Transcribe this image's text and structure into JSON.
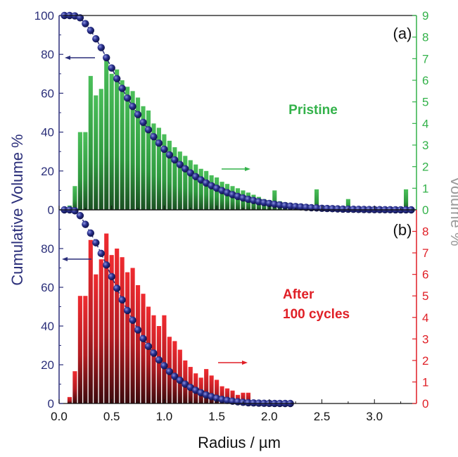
{
  "figure": {
    "xlabel": "Radius / µm",
    "left_axis_label": "Cumulative Volume %",
    "right_axis_label": "Volume %",
    "colors": {
      "left_axis": "#2b2f7a",
      "top_panel": "#33b24a",
      "bottom_panel": "#e01f26",
      "right_label": "#9a9a9a",
      "marker": "#1e2466"
    }
  },
  "chart_data": [
    {
      "panel": "(a)",
      "type": "bar+line",
      "annotation": "Pristine",
      "xlim": [
        0,
        3.4
      ],
      "ylim_left": [
        0,
        100
      ],
      "ylim_right": [
        0,
        9
      ],
      "x_ticks": [],
      "y_ticks_left": [
        0,
        20,
        40,
        60,
        80,
        100
      ],
      "y_ticks_right": [
        0,
        1,
        2,
        3,
        4,
        5,
        6,
        7,
        8,
        9
      ],
      "histogram": {
        "axis": "right",
        "bin_centers": [
          0.1,
          0.15,
          0.2,
          0.25,
          0.3,
          0.35,
          0.4,
          0.45,
          0.5,
          0.55,
          0.6,
          0.65,
          0.7,
          0.75,
          0.8,
          0.85,
          0.9,
          0.95,
          1.0,
          1.05,
          1.1,
          1.15,
          1.2,
          1.25,
          1.3,
          1.35,
          1.4,
          1.45,
          1.5,
          1.55,
          1.6,
          1.65,
          1.7,
          1.75,
          1.8,
          1.85,
          1.9,
          1.95,
          2.0,
          2.05,
          2.1,
          2.15,
          2.2,
          2.25,
          2.3,
          2.35,
          2.4,
          2.45,
          2.5,
          2.55,
          2.6,
          2.65,
          2.7,
          2.75,
          2.8,
          2.85,
          2.9,
          2.95,
          3.0,
          3.05,
          3.1,
          3.15,
          3.2,
          3.25,
          3.3
        ],
        "values": [
          0.2,
          1.1,
          3.6,
          3.6,
          6.2,
          5.3,
          5.6,
          7.2,
          6.3,
          6.5,
          6.0,
          5.7,
          5.5,
          5.2,
          4.8,
          4.6,
          4.0,
          3.8,
          3.5,
          3.2,
          2.9,
          2.7,
          2.5,
          2.3,
          2.1,
          1.9,
          1.8,
          1.6,
          1.5,
          1.3,
          1.2,
          1.1,
          1.0,
          0.9,
          0.8,
          0.7,
          0.6,
          0.5,
          0.45,
          0.9,
          0.4,
          0.35,
          0.3,
          0.3,
          0.25,
          0.25,
          0.2,
          0.95,
          0.2,
          0.15,
          0.15,
          0.1,
          0.1,
          0.5,
          0.1,
          0.08,
          0.06,
          0.05,
          0.05,
          0.05,
          0.04,
          0.04,
          0.04,
          0.04,
          0.95
        ]
      },
      "cumulative": {
        "axis": "left",
        "x": [
          0.05,
          0.1,
          0.15,
          0.2,
          0.25,
          0.3,
          0.35,
          0.4,
          0.45,
          0.5,
          0.55,
          0.6,
          0.65,
          0.7,
          0.75,
          0.8,
          0.85,
          0.9,
          0.95,
          1.0,
          1.05,
          1.1,
          1.15,
          1.2,
          1.25,
          1.3,
          1.35,
          1.4,
          1.45,
          1.5,
          1.55,
          1.6,
          1.65,
          1.7,
          1.75,
          1.8,
          1.85,
          1.9,
          1.95,
          2.0,
          2.05,
          2.1,
          2.15,
          2.2,
          2.25,
          2.3,
          2.35,
          2.4,
          2.45,
          2.5,
          2.55,
          2.6,
          2.65,
          2.7,
          2.75,
          2.8,
          2.85,
          2.9,
          2.95,
          3.0,
          3.05,
          3.1,
          3.15,
          3.2,
          3.25,
          3.3,
          3.35
        ],
        "y": [
          100,
          100,
          99.8,
          98.8,
          95.8,
          92.3,
          88.0,
          83.5,
          78.3,
          73.0,
          67.5,
          62.5,
          57.5,
          53.2,
          49.0,
          45.0,
          41.2,
          37.6,
          34.3,
          31.2,
          28.3,
          25.7,
          23.3,
          21.1,
          19.0,
          17.1,
          15.4,
          13.8,
          12.4,
          11.1,
          9.9,
          8.8,
          7.8,
          6.9,
          6.1,
          5.4,
          4.8,
          4.2,
          3.7,
          3.3,
          2.9,
          2.5,
          2.2,
          1.9,
          1.7,
          1.5,
          1.3,
          1.1,
          1.0,
          0.8,
          0.7,
          0.6,
          0.5,
          0.4,
          0.35,
          0.3,
          0.25,
          0.2,
          0.15,
          0.12,
          0.1,
          0.08,
          0.06,
          0.04,
          0.02,
          0.01,
          0
        ]
      }
    },
    {
      "panel": "(b)",
      "type": "bar+line",
      "annotation_line1": "After",
      "annotation_line2": "100 cycles",
      "xlim": [
        0,
        3.4
      ],
      "ylim_left": [
        0,
        100
      ],
      "ylim_right": [
        0,
        9
      ],
      "x_ticks": [
        0.0,
        0.5,
        1.0,
        1.5,
        2.0,
        2.5,
        3.0
      ],
      "x_tick_labels": [
        "0.0",
        "0.5",
        "1.0",
        "1.5",
        "2.0",
        "2.5",
        "3.0"
      ],
      "y_ticks_left": [
        0,
        20,
        40,
        60,
        80
      ],
      "y_ticks_right": [
        0,
        1,
        2,
        3,
        4,
        5,
        6,
        7,
        8
      ],
      "histogram": {
        "axis": "right",
        "bin_centers": [
          0.1,
          0.15,
          0.2,
          0.25,
          0.3,
          0.35,
          0.4,
          0.45,
          0.5,
          0.55,
          0.6,
          0.65,
          0.7,
          0.75,
          0.8,
          0.85,
          0.9,
          0.95,
          1.0,
          1.05,
          1.1,
          1.15,
          1.2,
          1.25,
          1.3,
          1.35,
          1.4,
          1.45,
          1.5,
          1.55,
          1.6,
          1.65,
          1.7,
          1.75,
          1.8
        ],
        "values": [
          0.3,
          1.5,
          5.0,
          5.0,
          7.6,
          6.0,
          6.7,
          7.9,
          6.9,
          7.2,
          6.8,
          6.1,
          6.3,
          5.5,
          5.1,
          4.5,
          4.1,
          3.6,
          4.1,
          3.1,
          2.9,
          2.5,
          2.0,
          1.7,
          1.4,
          1.2,
          1.6,
          1.3,
          1.1,
          0.8,
          0.7,
          0.6,
          0.4,
          0.5,
          0.5
        ]
      },
      "cumulative": {
        "axis": "left",
        "x": [
          0.05,
          0.1,
          0.15,
          0.2,
          0.25,
          0.3,
          0.35,
          0.4,
          0.45,
          0.5,
          0.55,
          0.6,
          0.65,
          0.7,
          0.75,
          0.8,
          0.85,
          0.9,
          0.95,
          1.0,
          1.05,
          1.1,
          1.15,
          1.2,
          1.25,
          1.3,
          1.35,
          1.4,
          1.45,
          1.5,
          1.55,
          1.6,
          1.65,
          1.7,
          1.75,
          1.8,
          1.85,
          1.9,
          1.95,
          2.0,
          2.05,
          2.1,
          2.15,
          2.2
        ],
        "y": [
          100,
          100,
          99.5,
          97.0,
          92.5,
          88.0,
          83.0,
          77.5,
          71.5,
          65.5,
          59.5,
          53.5,
          48.0,
          43.0,
          38.0,
          33.5,
          29.5,
          26.0,
          22.5,
          19.5,
          16.5,
          14.0,
          12.0,
          10.0,
          8.3,
          6.8,
          5.5,
          4.4,
          3.5,
          2.7,
          2.1,
          1.6,
          1.2,
          0.9,
          0.6,
          0.4,
          0.3,
          0.2,
          0.1,
          0.05,
          0.02,
          0.01,
          0,
          0
        ]
      }
    }
  ],
  "arrows": {
    "top_left": "left",
    "top_right": "right",
    "bottom_left": "left",
    "bottom_right": "right"
  }
}
